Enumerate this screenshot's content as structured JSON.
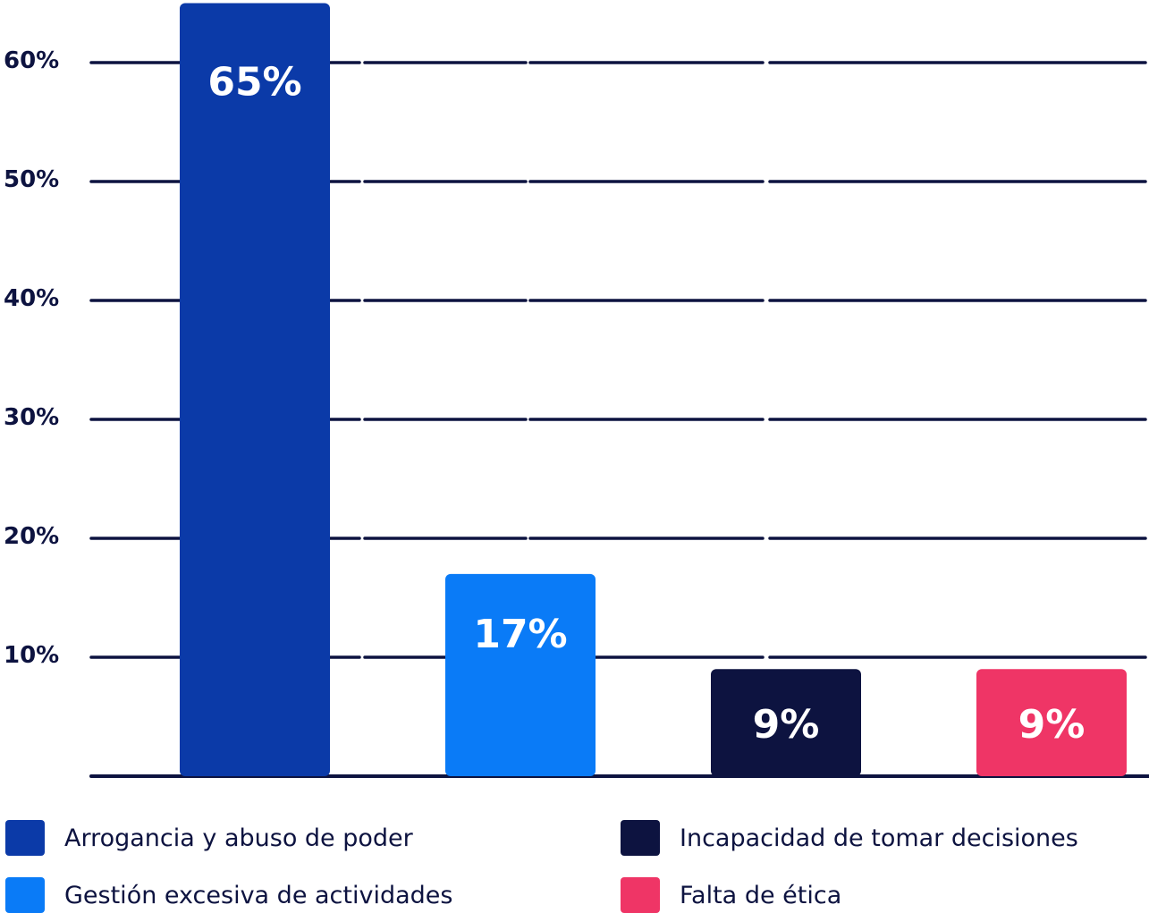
{
  "chart_data": {
    "type": "bar",
    "categories": [
      "Arrogancia y abuso de poder",
      "Gestión excesiva de actividades",
      "Incapacidad de tomar decisiones",
      "Falta de ética"
    ],
    "values": [
      65,
      17,
      9,
      9
    ],
    "value_labels": [
      "65%",
      "17%",
      "9%",
      "9%"
    ],
    "colors": [
      "#0b3aa8",
      "#0a7bf7",
      "#0d1340",
      "#ef3566"
    ],
    "y_ticks": [
      10,
      20,
      30,
      40,
      50,
      60
    ],
    "y_tick_labels": [
      "10%",
      "20%",
      "30%",
      "40%",
      "50%",
      "60%"
    ],
    "ylim": [
      0,
      65
    ],
    "grid": true,
    "legend_position": "bottom",
    "title": "",
    "xlabel": "",
    "ylabel": ""
  }
}
